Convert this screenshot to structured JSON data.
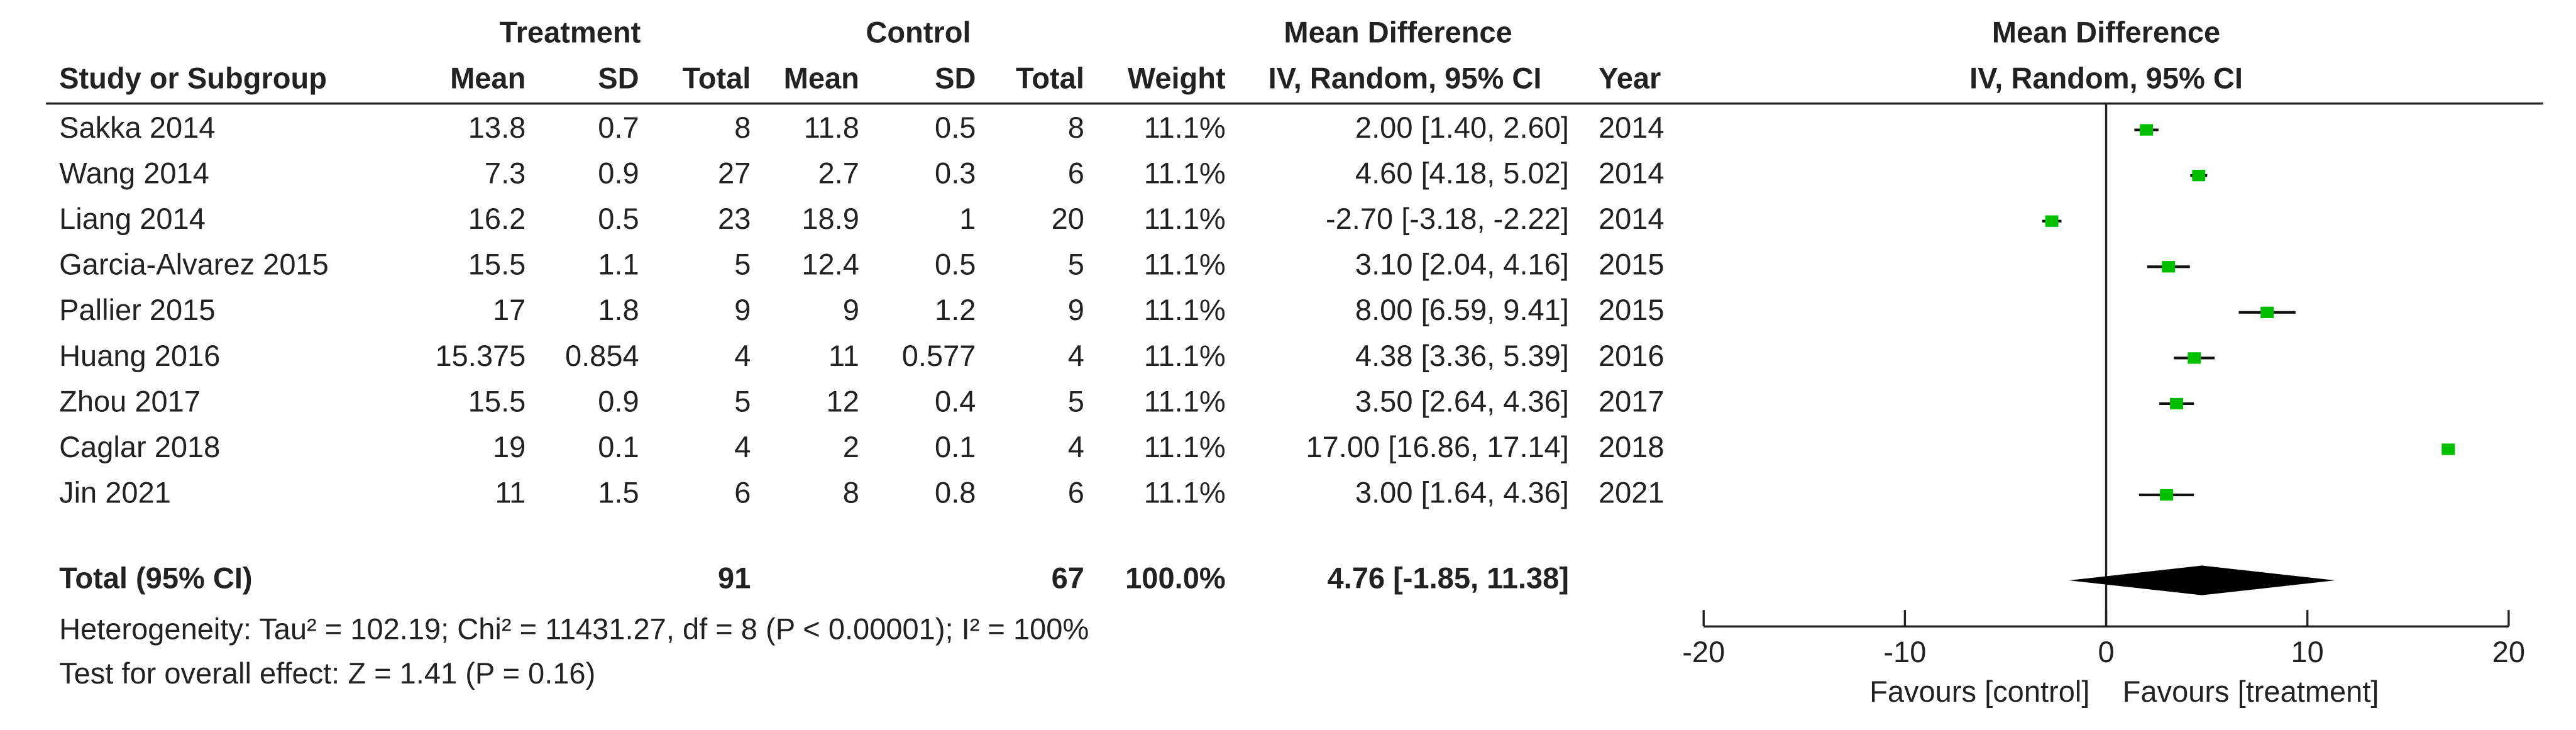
{
  "chart_data": {
    "type": "forest",
    "headers": {
      "treatment": "Treatment",
      "control": "Control",
      "md_top": "Mean Difference",
      "study": "Study or Subgroup",
      "mean": "Mean",
      "sd": "SD",
      "total": "Total",
      "weight": "Weight",
      "md_method": "IV, Random, 95% CI",
      "year": "Year",
      "plot_top": "Mean Difference",
      "plot_method": "IV, Random, 95% CI"
    },
    "categories": [
      "Sakka 2014",
      "Wang 2014",
      "Liang 2014",
      "Garcia-Alvarez 2015",
      "Pallier 2015",
      "Huang 2016",
      "Zhou 2017",
      "Caglar 2018",
      "Jin 2021"
    ],
    "treatment_mean": [
      13.8,
      7.3,
      16.2,
      15.5,
      17,
      15.375,
      15.5,
      19,
      11
    ],
    "treatment_sd": [
      0.7,
      0.9,
      0.5,
      1.1,
      1.8,
      0.854,
      0.9,
      0.1,
      1.5
    ],
    "treatment_total": [
      8,
      27,
      23,
      5,
      9,
      4,
      5,
      4,
      6
    ],
    "control_mean": [
      11.8,
      2.7,
      18.9,
      12.4,
      9,
      11,
      12,
      2,
      8
    ],
    "control_sd": [
      0.5,
      0.3,
      1,
      0.5,
      1.2,
      0.577,
      0.4,
      0.1,
      0.8
    ],
    "control_total": [
      8,
      6,
      20,
      5,
      9,
      4,
      5,
      4,
      6
    ],
    "weight": [
      "11.1%",
      "11.1%",
      "11.1%",
      "11.1%",
      "11.1%",
      "11.1%",
      "11.1%",
      "11.1%",
      "11.1%"
    ],
    "values": [
      2.0,
      4.6,
      -2.7,
      3.1,
      8.0,
      4.38,
      3.5,
      17.0,
      3.0
    ],
    "ci_low": [
      1.4,
      4.18,
      -3.18,
      2.04,
      6.59,
      3.36,
      2.64,
      16.86,
      1.64
    ],
    "ci_high": [
      2.6,
      5.02,
      -2.22,
      4.16,
      9.41,
      5.39,
      4.36,
      17.14,
      4.36
    ],
    "value_labels": [
      "2.00 [1.40, 2.60]",
      "4.60 [4.18, 5.02]",
      "-2.70 [-3.18, -2.22]",
      "3.10 [2.04, 4.16]",
      "8.00 [6.59, 9.41]",
      "4.38 [3.36, 5.39]",
      "3.50 [2.64, 4.36]",
      "17.00 [16.86, 17.14]",
      "3.00 [1.64, 4.36]"
    ],
    "years": [
      2014,
      2014,
      2014,
      2015,
      2015,
      2016,
      2017,
      2018,
      2021
    ],
    "total": {
      "label": "Total (95% CI)",
      "treatment_total": 91,
      "control_total": 67,
      "weight": "100.0%",
      "value": 4.76,
      "ci_low": -1.85,
      "ci_high": 11.38,
      "value_label": "4.76 [-1.85, 11.38]"
    },
    "heterogeneity": "Heterogeneity: Tau² = 102.19; Chi² = 11431.27, df = 8 (P < 0.00001); I² = 100%",
    "overall_effect": "Test for overall effect: Z = 1.41 (P = 0.16)",
    "xlim": [
      -20,
      20
    ],
    "xticks": [
      -20,
      -10,
      0,
      10,
      20
    ],
    "favours_left": "Favours [control]",
    "favours_right": "Favours [treatment]",
    "color": "#00c000"
  }
}
